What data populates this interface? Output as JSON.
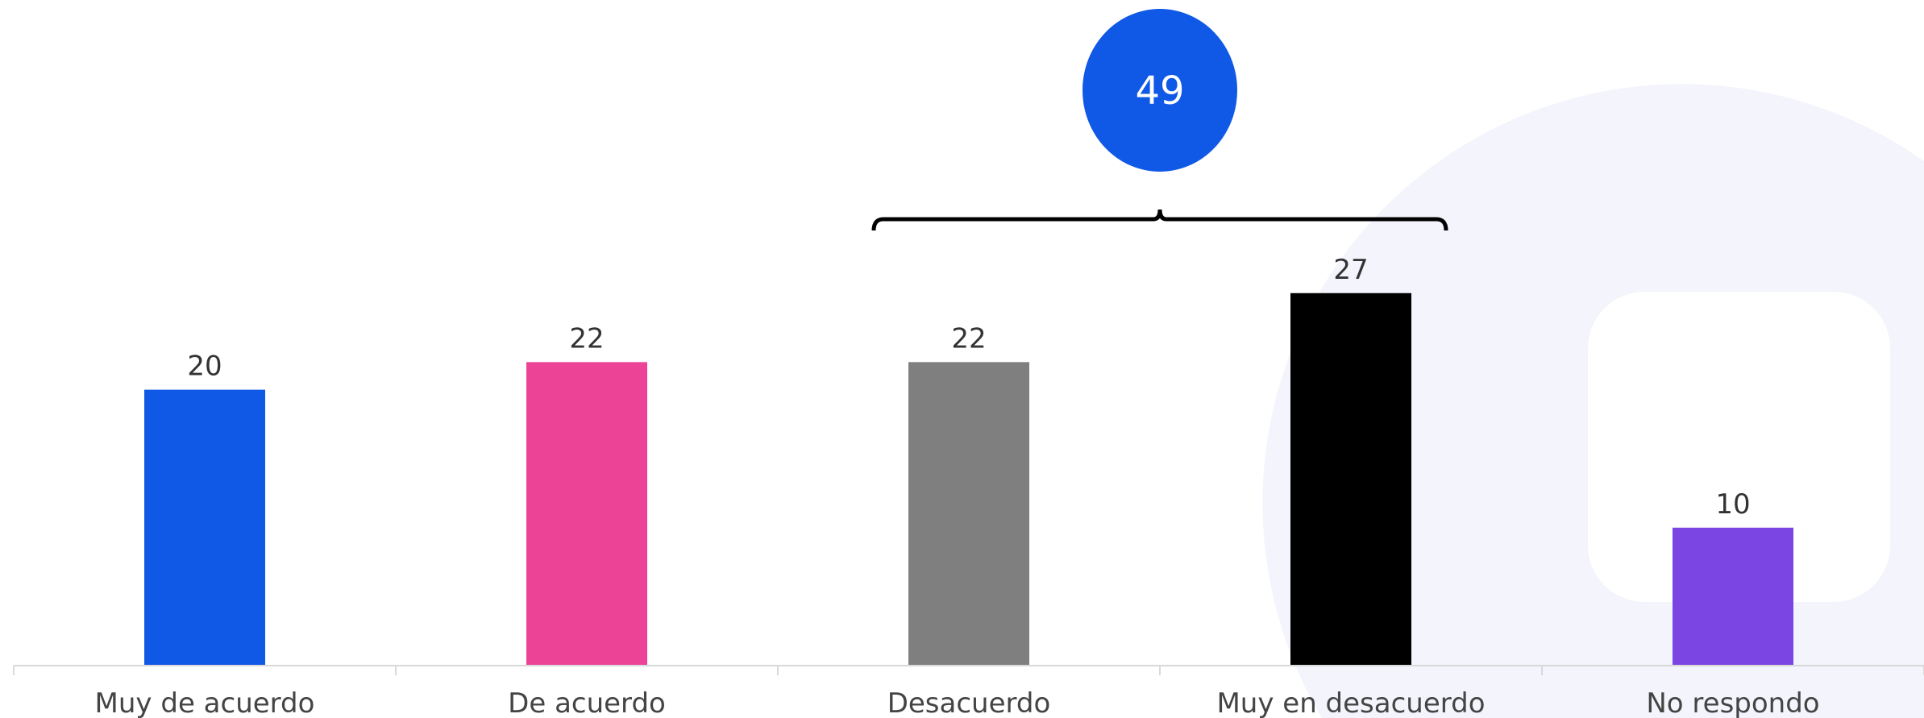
{
  "chart_data": {
    "type": "bar",
    "categories": [
      "Muy de acuerdo",
      "De acuerdo",
      "Desacuerdo",
      "Muy en desacuerdo",
      "No respondo"
    ],
    "values": [
      20,
      22,
      22,
      27,
      10
    ],
    "data_labels": [
      "20",
      "22",
      "22",
      "27",
      "10"
    ],
    "colors": [
      "#1058E6",
      "#EC4396",
      "#7F7F7F",
      "#000000",
      "#7B45E3"
    ],
    "ylim": [
      0,
      30
    ],
    "grid": false,
    "legend": "none",
    "annotation": {
      "label": "49",
      "spans_categories": [
        "Desacuerdo",
        "Muy en desacuerdo"
      ],
      "color": "#1058E6"
    }
  },
  "colors": {
    "axis": "#D9D9D9",
    "watermark": "#F3F4FC",
    "bracket": "#000000"
  }
}
